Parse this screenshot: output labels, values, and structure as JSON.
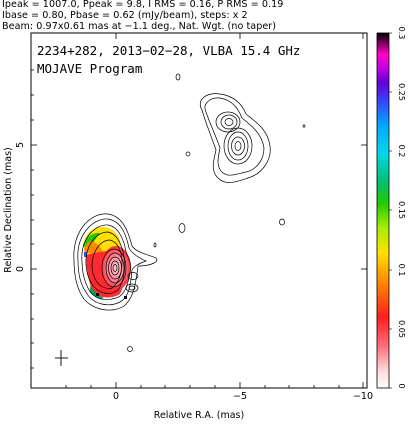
{
  "header": {
    "line1": "Ipeak = 1007.0, Ppeak = 9.8, I RMS = 0.16, P RMS = 0.19",
    "line2": "Ibase = 0.80, Pbase = 0.62 (mJy/beam), steps: x 2",
    "line3": "Beam: 0.97x0.61 mas at −1.1 deg., Nat. Wgt. (no taper)"
  },
  "plot": {
    "title": "2234+282, 2013−02−28, VLBA 15.4 GHz",
    "subtitle": "MOJAVE Program",
    "xlabel": "Relative R.A. (mas)",
    "ylabel": "Relative Declination (mas)",
    "x_ticks": [
      "0",
      "−5",
      "−10"
    ],
    "y_ticks": [
      "5",
      "0"
    ],
    "colorbar_ticks": [
      "0.3",
      "0.25",
      "0.2",
      "0.15",
      "0.1",
      "0.05",
      "0"
    ],
    "colorbar_range": [
      0,
      0.3
    ]
  }
}
